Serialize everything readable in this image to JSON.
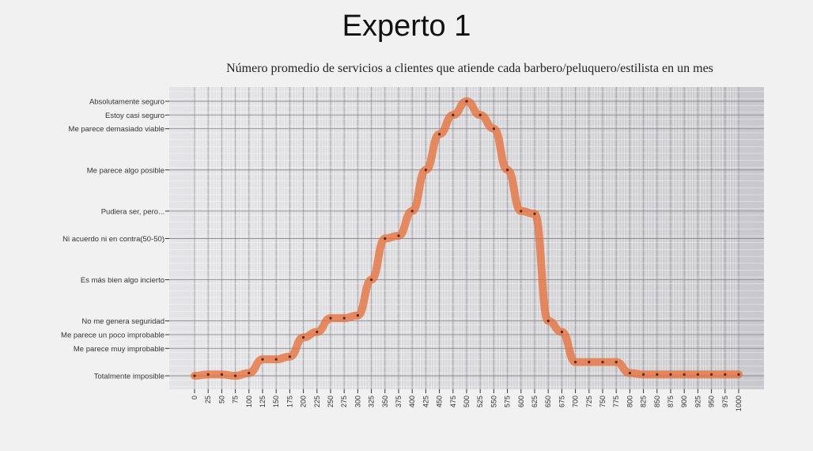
{
  "header": {
    "title": "Experto 1"
  },
  "chart_data": {
    "type": "line",
    "title": "Número promedio de servicios a clientes que atiende cada barbero/peluquero/estilista en un mes",
    "xlabel": "",
    "ylabel": "",
    "xlim": [
      0,
      1000
    ],
    "x_ticks": [
      "0",
      "25",
      "50",
      "75",
      "100",
      "125",
      "150",
      "175",
      "200",
      "225",
      "250",
      "275",
      "300",
      "325",
      "350",
      "375",
      "400",
      "425",
      "450",
      "475",
      "500",
      "525",
      "550",
      "575",
      "600",
      "625",
      "650",
      "675",
      "700",
      "725",
      "750",
      "775",
      "800",
      "825",
      "850",
      "875",
      "900",
      "925",
      "950",
      "975",
      "1000"
    ],
    "y_categories": [
      "Totalmente imposible",
      "Me parece muy improbable",
      "Me parece un poco improbable",
      "No me genera seguridad",
      "Es más bien algo incierto",
      "Ni acuerdo ni en contra(50-50)",
      "Pudiera ser, pero...",
      "Me parece algo posible",
      "Me parece demasiado viable",
      "Estoy casi seguro",
      "Absolutamente seguro"
    ],
    "y_levels": [
      0,
      10,
      15,
      20,
      35,
      50,
      60,
      75,
      90,
      95,
      100
    ],
    "grid": true,
    "series": [
      {
        "color": "#e8703a",
        "x": [
          0,
          25,
          50,
          75,
          100,
          125,
          150,
          175,
          200,
          225,
          250,
          275,
          300,
          325,
          350,
          375,
          400,
          425,
          450,
          475,
          500,
          525,
          550,
          575,
          600,
          625,
          650,
          675,
          700,
          725,
          750,
          775,
          800,
          825,
          850,
          875,
          900,
          925,
          950,
          975,
          1000
        ],
        "y": [
          0,
          0.5,
          0.5,
          0,
          1,
          6,
          6,
          7,
          14,
          16,
          21,
          21,
          22,
          35,
          50,
          51,
          60,
          75,
          88,
          95,
          100,
          95,
          90,
          75,
          60,
          59,
          20,
          16,
          5,
          5,
          5,
          5,
          1,
          0.5,
          0.5,
          0.5,
          0.5,
          0.5,
          0.5,
          0.5,
          0.5
        ]
      }
    ]
  }
}
